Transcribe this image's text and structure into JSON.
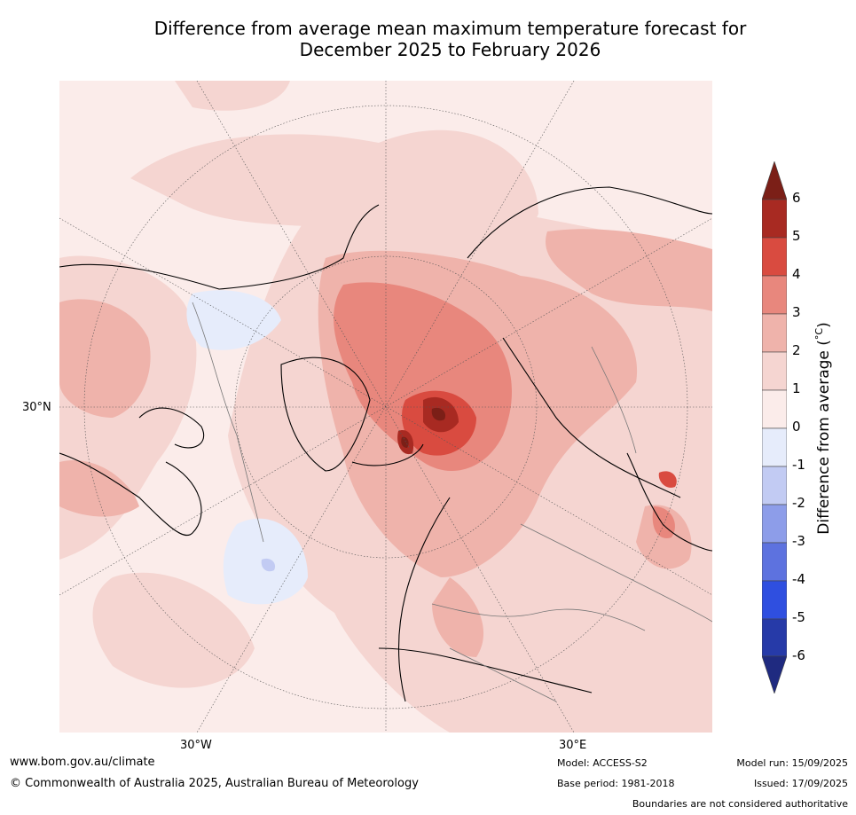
{
  "title": {
    "line1": "Difference from average mean maximum temperature forecast for",
    "line2": "December 2025 to February 2026"
  },
  "map": {
    "projection": "north polar stereographic",
    "lat_label": "30°N",
    "lon_labels": [
      "30°W",
      "30°E"
    ]
  },
  "colorbar": {
    "label": "Difference from average (°C)",
    "label_prefix": "Difference from average (",
    "label_unit": "°C",
    "label_suffix": ")",
    "ticks": [
      "6",
      "5",
      "4",
      "3",
      "2",
      "1",
      "0",
      "-1",
      "-2",
      "-3",
      "-4",
      "-5",
      "-6"
    ],
    "colors": {
      "gt6": "#7b1f17",
      "5_6": "#a82a22",
      "4_5": "#d94b40",
      "3_4": "#e8877d",
      "2_3": "#efb3ab",
      "1_2": "#f5d5d1",
      "0_1": "#fbecea",
      "m1_0": "#e6ecfb",
      "m2_m1": "#c2cbf3",
      "m3_m2": "#8d9de9",
      "m4_m3": "#5d72df",
      "m5_m4": "#2f4fe0",
      "m6_m5": "#263aa8",
      "lt_m6": "#1f2a80"
    }
  },
  "footer": {
    "url": "www.bom.gov.au/climate",
    "copyright": "© Commonwealth of Australia 2025, Australian Bureau of Meteorology",
    "model": "Model: ACCESS-S2",
    "base_period": "Base period: 1981-2018",
    "model_run": "Model run: 15/09/2025",
    "issued": "Issued: 17/09/2025",
    "disclaimer": "Boundaries are not considered authoritative"
  }
}
